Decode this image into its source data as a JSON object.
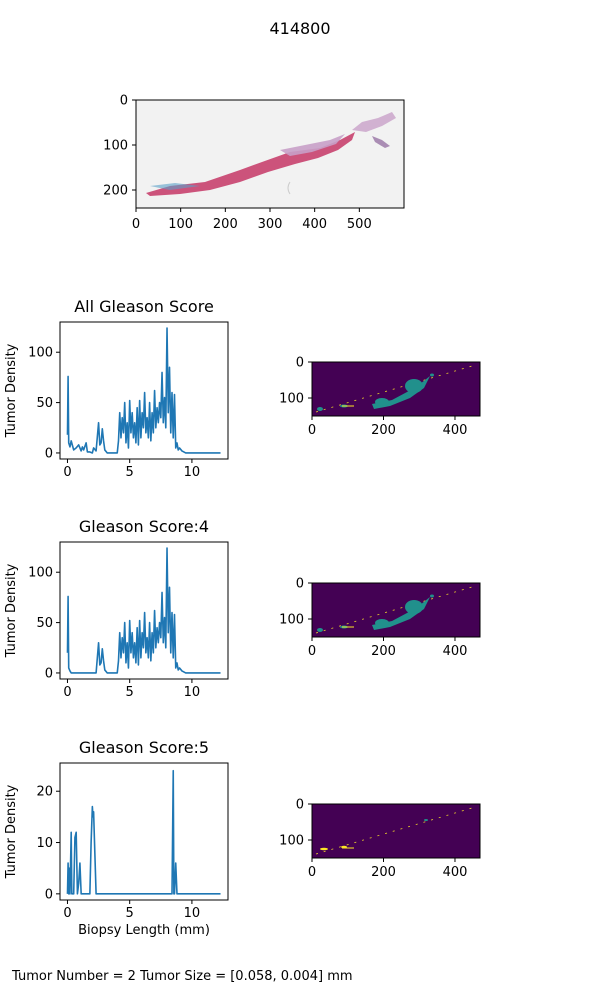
{
  "figure": {
    "title": "414800",
    "footer": "Tumor Number = 2  Tumor Size = [0.058, 0.004] mm"
  },
  "colors": {
    "line": "#1f77b4",
    "map_background": "#440154",
    "map_tissue": "#21908c",
    "map_highlight": "#fde725",
    "slide_background": "#f2f2f2",
    "tissue_pink": "#c8416e",
    "tissue_lilac": "#c8a0c8"
  },
  "chart_data": [
    {
      "type": "image",
      "id": "biopsy",
      "xlim": [
        0,
        600
      ],
      "ylim": [
        240,
        0
      ],
      "xticks": [
        0,
        100,
        200,
        300,
        400,
        500
      ],
      "yticks": [
        0,
        100,
        200
      ]
    },
    {
      "type": "line",
      "id": "all",
      "title": "All Gleason Score",
      "ylabel": "Tumor Density",
      "xlim": [
        -0.6,
        12.9
      ],
      "ylim": [
        -6,
        130
      ],
      "xticks": [
        0,
        5,
        10
      ],
      "yticks": [
        0,
        50,
        100
      ],
      "x": [
        0,
        0.05,
        0.1,
        0.2,
        0.3,
        0.5,
        0.7,
        0.9,
        1.1,
        1.2,
        1.3,
        1.5,
        1.6,
        1.8,
        2.0,
        2.1,
        2.3,
        2.5,
        2.6,
        2.7,
        2.8,
        2.9,
        3.0,
        3.2,
        3.5,
        3.8,
        4.0,
        4.1,
        4.2,
        4.3,
        4.4,
        4.5,
        4.6,
        4.7,
        4.8,
        4.9,
        5.0,
        5.1,
        5.2,
        5.3,
        5.4,
        5.5,
        5.6,
        5.7,
        5.8,
        5.9,
        6.0,
        6.1,
        6.2,
        6.3,
        6.4,
        6.5,
        6.6,
        6.7,
        6.8,
        6.9,
        7.0,
        7.1,
        7.2,
        7.3,
        7.4,
        7.5,
        7.6,
        7.7,
        7.8,
        7.9,
        8.0,
        8.1,
        8.2,
        8.3,
        8.4,
        8.5,
        8.6,
        8.7,
        8.8,
        8.9,
        9.0,
        9.2,
        9.5,
        10.0,
        11.0,
        12.3
      ],
      "values": [
        18,
        76,
        10,
        6,
        12,
        3,
        5,
        8,
        2,
        6,
        3,
        10,
        1,
        1,
        0,
        5,
        2,
        30,
        8,
        10,
        24,
        12,
        3,
        0,
        0,
        0,
        0,
        12,
        40,
        15,
        35,
        20,
        50,
        10,
        30,
        5,
        52,
        20,
        40,
        15,
        30,
        10,
        45,
        8,
        52,
        15,
        40,
        25,
        60,
        20,
        35,
        15,
        50,
        12,
        40,
        20,
        62,
        25,
        45,
        30,
        50,
        35,
        80,
        30,
        55,
        25,
        124,
        40,
        85,
        20,
        60,
        15,
        58,
        5,
        10,
        3,
        5,
        2,
        0,
        0,
        0,
        0
      ]
    },
    {
      "type": "heatmap",
      "id": "map-all",
      "xlim": [
        0,
        470
      ],
      "ylim": [
        150,
        0
      ],
      "xticks": [
        0,
        200,
        400
      ],
      "yticks": [
        0,
        100
      ]
    },
    {
      "type": "line",
      "id": "g4",
      "title": "Gleason Score:4",
      "ylabel": "Tumor Density",
      "xlim": [
        -0.6,
        12.9
      ],
      "ylim": [
        -6,
        130
      ],
      "xticks": [
        0,
        5,
        10
      ],
      "yticks": [
        0,
        50,
        100
      ],
      "x": [
        0,
        0.05,
        0.1,
        0.2,
        0.3,
        0.5,
        0.7,
        0.9,
        1.1,
        1.2,
        1.3,
        1.5,
        1.6,
        1.8,
        2.0,
        2.1,
        2.3,
        2.5,
        2.6,
        2.7,
        2.8,
        2.9,
        3.0,
        3.2,
        3.5,
        3.8,
        4.0,
        4.1,
        4.2,
        4.3,
        4.4,
        4.5,
        4.6,
        4.7,
        4.8,
        4.9,
        5.0,
        5.1,
        5.2,
        5.3,
        5.4,
        5.5,
        5.6,
        5.7,
        5.8,
        5.9,
        6.0,
        6.1,
        6.2,
        6.3,
        6.4,
        6.5,
        6.6,
        6.7,
        6.8,
        6.9,
        7.0,
        7.1,
        7.2,
        7.3,
        7.4,
        7.5,
        7.6,
        7.7,
        7.8,
        7.9,
        8.0,
        8.1,
        8.2,
        8.3,
        8.4,
        8.5,
        8.6,
        8.7,
        8.8,
        8.9,
        9.0,
        9.2,
        9.5,
        10.0,
        11.0,
        12.3
      ],
      "values": [
        20,
        76,
        5,
        2,
        0,
        0,
        0,
        0,
        0,
        0,
        0,
        0,
        0,
        0,
        0,
        0,
        0,
        30,
        8,
        10,
        24,
        12,
        3,
        0,
        0,
        0,
        0,
        12,
        40,
        15,
        35,
        20,
        50,
        10,
        30,
        5,
        52,
        20,
        40,
        15,
        30,
        10,
        45,
        8,
        52,
        15,
        40,
        25,
        60,
        20,
        35,
        15,
        50,
        12,
        40,
        20,
        62,
        25,
        45,
        30,
        50,
        35,
        80,
        30,
        55,
        25,
        124,
        40,
        85,
        20,
        60,
        15,
        58,
        5,
        10,
        3,
        5,
        2,
        0,
        0,
        0,
        0
      ]
    },
    {
      "type": "heatmap",
      "id": "map-g4",
      "xlim": [
        0,
        470
      ],
      "ylim": [
        150,
        0
      ],
      "xticks": [
        0,
        200,
        400
      ],
      "yticks": [
        0,
        100
      ]
    },
    {
      "type": "line",
      "id": "g5",
      "title": "Gleason Score:5",
      "ylabel": "Tumor Density",
      "xlabel": "Biopsy Length (mm)",
      "xlim": [
        -0.6,
        12.9
      ],
      "ylim": [
        -1.2,
        25.5
      ],
      "xticks": [
        0,
        5,
        10
      ],
      "yticks": [
        0,
        10,
        20
      ],
      "x": [
        0,
        0.05,
        0.1,
        0.15,
        0.2,
        0.3,
        0.35,
        0.4,
        0.5,
        0.6,
        0.7,
        0.8,
        0.9,
        1.0,
        1.1,
        1.2,
        1.3,
        1.5,
        1.8,
        1.9,
        2.0,
        2.05,
        2.1,
        2.2,
        2.3,
        2.5,
        4.0,
        6.0,
        8.0,
        8.4,
        8.5,
        8.55,
        8.6,
        8.7,
        8.8,
        9.0,
        10.0,
        12.3
      ],
      "values": [
        0,
        6,
        0,
        5,
        0,
        12,
        0,
        0,
        0,
        11,
        12,
        0,
        2,
        6,
        0,
        0,
        0,
        0,
        0,
        10,
        17,
        15,
        16,
        8,
        0,
        0,
        0,
        0,
        0,
        0,
        24,
        0,
        0,
        6,
        0,
        0,
        0,
        0
      ]
    },
    {
      "type": "heatmap",
      "id": "map-g5",
      "xlim": [
        0,
        470
      ],
      "ylim": [
        150,
        0
      ],
      "xticks": [
        0,
        200,
        400
      ],
      "yticks": [
        0,
        100
      ]
    }
  ]
}
